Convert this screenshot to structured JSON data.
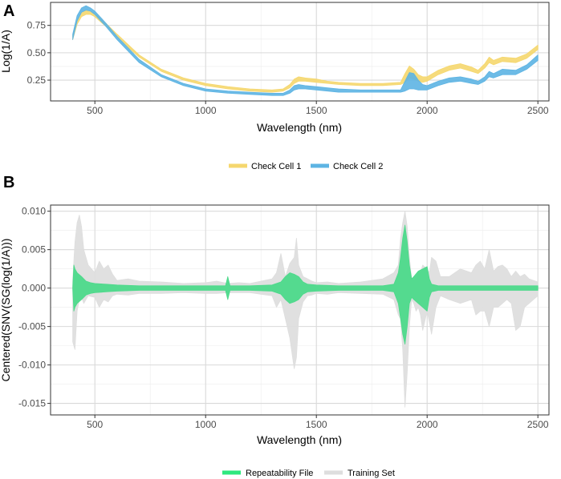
{
  "chart_data": [
    {
      "panel": "A",
      "type": "line",
      "xlabel": "Wavelength (nm)",
      "ylabel": "Log(1/A)",
      "xlim": [
        300,
        2550
      ],
      "ylim": [
        0.06,
        0.96
      ],
      "xticks": [
        500,
        1000,
        1500,
        2000,
        2500
      ],
      "yticks": [
        0.25,
        0.5,
        0.75
      ],
      "ytick_labels": [
        "0.25",
        "0.50",
        "0.75"
      ],
      "grid": true,
      "legend_position": "bottom",
      "series": [
        {
          "name": "Check Cell 1",
          "color": "#F5D76E",
          "x": [
            400,
            420,
            440,
            460,
            480,
            500,
            550,
            600,
            700,
            800,
            900,
            1000,
            1100,
            1200,
            1300,
            1350,
            1380,
            1400,
            1420,
            1450,
            1500,
            1550,
            1600,
            1700,
            1800,
            1880,
            1900,
            1920,
            1940,
            1960,
            1980,
            2000,
            2050,
            2100,
            2150,
            2200,
            2230,
            2260,
            2280,
            2300,
            2340,
            2400,
            2450,
            2500
          ],
          "upper": [
            0.66,
            0.8,
            0.87,
            0.89,
            0.88,
            0.86,
            0.77,
            0.67,
            0.48,
            0.35,
            0.27,
            0.22,
            0.19,
            0.17,
            0.16,
            0.17,
            0.21,
            0.26,
            0.28,
            0.27,
            0.26,
            0.24,
            0.23,
            0.22,
            0.22,
            0.23,
            0.31,
            0.38,
            0.35,
            0.3,
            0.28,
            0.28,
            0.34,
            0.38,
            0.4,
            0.37,
            0.34,
            0.4,
            0.46,
            0.43,
            0.46,
            0.45,
            0.49,
            0.57
          ],
          "lower": [
            0.62,
            0.76,
            0.83,
            0.85,
            0.85,
            0.83,
            0.74,
            0.64,
            0.46,
            0.33,
            0.25,
            0.2,
            0.17,
            0.15,
            0.14,
            0.15,
            0.18,
            0.22,
            0.24,
            0.24,
            0.23,
            0.22,
            0.21,
            0.2,
            0.2,
            0.21,
            0.23,
            0.27,
            0.26,
            0.24,
            0.23,
            0.24,
            0.3,
            0.34,
            0.36,
            0.33,
            0.31,
            0.36,
            0.41,
            0.39,
            0.42,
            0.41,
            0.45,
            0.53
          ]
        },
        {
          "name": "Check Cell 2",
          "color": "#5DB4E3",
          "x": [
            400,
            420,
            440,
            460,
            480,
            500,
            550,
            600,
            700,
            800,
            900,
            1000,
            1100,
            1200,
            1300,
            1350,
            1380,
            1400,
            1420,
            1450,
            1500,
            1550,
            1600,
            1700,
            1800,
            1880,
            1900,
            1920,
            1940,
            1960,
            1980,
            2000,
            2050,
            2100,
            2150,
            2200,
            2230,
            2260,
            2280,
            2300,
            2340,
            2400,
            2450,
            2500
          ],
          "upper": [
            0.67,
            0.84,
            0.91,
            0.93,
            0.91,
            0.88,
            0.77,
            0.65,
            0.44,
            0.3,
            0.22,
            0.17,
            0.15,
            0.14,
            0.13,
            0.13,
            0.16,
            0.2,
            0.21,
            0.2,
            0.19,
            0.18,
            0.17,
            0.16,
            0.16,
            0.16,
            0.24,
            0.32,
            0.31,
            0.25,
            0.21,
            0.2,
            0.24,
            0.27,
            0.28,
            0.26,
            0.24,
            0.28,
            0.33,
            0.31,
            0.35,
            0.34,
            0.39,
            0.48
          ],
          "lower": [
            0.62,
            0.79,
            0.87,
            0.89,
            0.88,
            0.85,
            0.74,
            0.62,
            0.41,
            0.28,
            0.2,
            0.15,
            0.13,
            0.12,
            0.11,
            0.11,
            0.13,
            0.16,
            0.17,
            0.17,
            0.16,
            0.15,
            0.14,
            0.14,
            0.14,
            0.14,
            0.15,
            0.17,
            0.17,
            0.16,
            0.16,
            0.16,
            0.2,
            0.23,
            0.24,
            0.22,
            0.21,
            0.24,
            0.28,
            0.27,
            0.3,
            0.3,
            0.35,
            0.43
          ]
        }
      ]
    },
    {
      "panel": "B",
      "type": "area",
      "xlabel": "Wavelength (nm)",
      "ylabel": "Centered(SNV(SG(log(1/A)))",
      "xlim": [
        300,
        2550
      ],
      "ylim": [
        -0.0165,
        0.0108
      ],
      "xticks": [
        500,
        1000,
        1500,
        2000,
        2500
      ],
      "yticks": [
        -0.015,
        -0.01,
        -0.005,
        0.0,
        0.005,
        0.01
      ],
      "ytick_labels": [
        "-0.015",
        "-0.010",
        "-0.005",
        "0.000",
        "0.005",
        "0.010"
      ],
      "grid": true,
      "legend_position": "bottom",
      "series": [
        {
          "name": "Training Set",
          "color": "#DEDEDE",
          "x": [
            400,
            410,
            420,
            430,
            440,
            450,
            470,
            500,
            520,
            540,
            560,
            580,
            600,
            650,
            700,
            800,
            900,
            1000,
            1050,
            1100,
            1150,
            1200,
            1250,
            1300,
            1320,
            1340,
            1360,
            1380,
            1400,
            1410,
            1420,
            1440,
            1460,
            1480,
            1500,
            1550,
            1600,
            1700,
            1800,
            1850,
            1870,
            1880,
            1890,
            1900,
            1910,
            1920,
            1930,
            1940,
            1950,
            1960,
            1970,
            1980,
            2000,
            2010,
            2020,
            2040,
            2060,
            2100,
            2150,
            2200,
            2220,
            2240,
            2260,
            2280,
            2300,
            2320,
            2340,
            2360,
            2380,
            2400,
            2420,
            2440,
            2460,
            2480,
            2500
          ],
          "upper": [
            0.001,
            0.006,
            0.0085,
            0.0095,
            0.008,
            0.005,
            0.003,
            0.002,
            0.0035,
            0.0025,
            0.003,
            0.0018,
            0.001,
            0.0012,
            0.0009,
            0.0008,
            0.0006,
            0.0007,
            0.0009,
            0.0006,
            0.0007,
            0.0006,
            0.0009,
            0.0012,
            0.002,
            0.0045,
            0.0015,
            0.0032,
            0.004,
            0.0065,
            0.003,
            0.0015,
            0.0012,
            0.0009,
            0.0007,
            0.0008,
            0.0006,
            0.0008,
            0.0012,
            0.002,
            0.003,
            0.0065,
            0.0085,
            0.01,
            0.008,
            0.004,
            0.0012,
            0.001,
            0.0012,
            0.0018,
            0.002,
            0.003,
            0.0025,
            0.002,
            0.004,
            0.0035,
            0.0015,
            0.0015,
            0.0025,
            0.002,
            0.003,
            0.0035,
            0.0025,
            0.005,
            0.0022,
            0.0028,
            0.003,
            0.0025,
            0.0015,
            0.0022,
            0.0015,
            0.0018,
            0.0012,
            0.001,
            0.0008
          ],
          "lower": [
            -0.007,
            -0.008,
            -0.003,
            -0.0015,
            -0.0012,
            -0.002,
            -0.001,
            -0.0012,
            -0.0025,
            -0.0015,
            -0.0018,
            -0.001,
            -0.0008,
            -0.0009,
            -0.0007,
            -0.0007,
            -0.0006,
            -0.0007,
            -0.0007,
            -0.0006,
            -0.0006,
            -0.0006,
            -0.0008,
            -0.001,
            -0.0025,
            -0.0015,
            -0.004,
            -0.0065,
            -0.0105,
            -0.009,
            -0.004,
            -0.0018,
            -0.001,
            -0.0009,
            -0.0007,
            -0.0008,
            -0.0006,
            -0.0007,
            -0.0008,
            -0.0015,
            -0.0035,
            -0.004,
            -0.008,
            -0.0155,
            -0.011,
            -0.005,
            -0.0015,
            -0.002,
            -0.003,
            -0.0025,
            -0.0035,
            -0.0055,
            -0.003,
            -0.0045,
            -0.006,
            -0.0025,
            -0.001,
            -0.0015,
            -0.002,
            -0.0015,
            -0.0035,
            -0.003,
            -0.003,
            -0.005,
            -0.0025,
            -0.0025,
            -0.002,
            -0.0015,
            -0.002,
            -0.0055,
            -0.005,
            -0.0025,
            -0.002,
            -0.0015,
            -0.001
          ]
        },
        {
          "name": "Repeatability File",
          "color": "#4CD98A",
          "x": [
            400,
            405,
            410,
            420,
            440,
            460,
            480,
            500,
            550,
            600,
            700,
            800,
            900,
            1000,
            1050,
            1090,
            1100,
            1110,
            1150,
            1200,
            1300,
            1340,
            1360,
            1380,
            1400,
            1420,
            1440,
            1460,
            1500,
            1600,
            1700,
            1800,
            1850,
            1870,
            1880,
            1890,
            1900,
            1910,
            1920,
            1930,
            1940,
            1960,
            1980,
            2000,
            2010,
            2020,
            2050,
            2100,
            2200,
            2300,
            2400,
            2500
          ],
          "upper": [
            0.0,
            0.003,
            0.0025,
            0.002,
            0.0015,
            0.0009,
            0.0007,
            0.0006,
            0.0005,
            0.0004,
            0.0003,
            0.0003,
            0.0003,
            0.0003,
            0.0003,
            0.0003,
            0.0015,
            0.0003,
            0.0003,
            0.0003,
            0.0004,
            0.0008,
            0.0015,
            0.002,
            0.0018,
            0.0015,
            0.0008,
            0.0005,
            0.0004,
            0.0003,
            0.0003,
            0.0003,
            0.0005,
            0.002,
            0.004,
            0.0065,
            0.0082,
            0.006,
            0.003,
            0.0012,
            0.0015,
            0.0022,
            0.0025,
            0.0028,
            0.0012,
            0.0005,
            0.0003,
            0.0003,
            0.0003,
            0.0003,
            0.0003,
            0.0003
          ],
          "lower": [
            0.0,
            -0.003,
            -0.0025,
            -0.002,
            -0.0015,
            -0.0009,
            -0.0007,
            -0.0006,
            -0.0005,
            -0.0004,
            -0.0003,
            -0.0003,
            -0.0003,
            -0.0003,
            -0.0003,
            -0.0003,
            -0.0015,
            -0.0003,
            -0.0003,
            -0.0003,
            -0.0004,
            -0.0008,
            -0.0015,
            -0.002,
            -0.0018,
            -0.0015,
            -0.0008,
            -0.0005,
            -0.0004,
            -0.0003,
            -0.0003,
            -0.0003,
            -0.0005,
            -0.002,
            -0.004,
            -0.006,
            -0.0073,
            -0.005,
            -0.002,
            -0.0012,
            -0.0015,
            -0.002,
            -0.0025,
            -0.003,
            -0.0012,
            -0.0005,
            -0.0003,
            -0.0003,
            -0.0003,
            -0.0003,
            -0.0003,
            -0.0003
          ]
        }
      ]
    }
  ],
  "panels": [
    {
      "letter": "A"
    },
    {
      "letter": "B"
    }
  ]
}
